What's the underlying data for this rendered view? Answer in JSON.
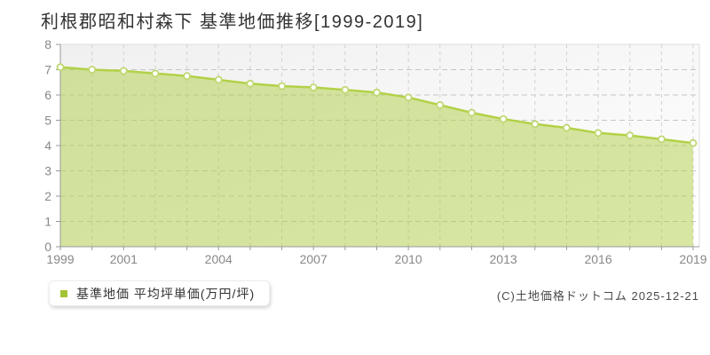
{
  "title": "利根郡昭和村森下 基準地価推移[1999-2019]",
  "legend": {
    "label": "基準地価 平均坪単価(万円/坪)",
    "swatch_color": "#a2c433"
  },
  "copyright": "(C)土地価格ドットコム 2025-12-21",
  "chart_data": {
    "type": "area",
    "title": "利根郡昭和村森下 基準地価推移[1999-2019]",
    "x": [
      1999,
      2000,
      2001,
      2002,
      2003,
      2004,
      2005,
      2006,
      2007,
      2008,
      2009,
      2010,
      2011,
      2012,
      2013,
      2014,
      2015,
      2016,
      2017,
      2018,
      2019
    ],
    "series": [
      {
        "name": "基準地価 平均坪単価(万円/坪)",
        "values": [
          7.1,
          7.0,
          6.95,
          6.85,
          6.75,
          6.6,
          6.45,
          6.35,
          6.3,
          6.2,
          6.1,
          5.9,
          5.6,
          5.3,
          5.05,
          4.85,
          4.7,
          4.5,
          4.4,
          4.25,
          4.1
        ]
      }
    ],
    "xlabel": "",
    "ylabel": "",
    "ylim": [
      0,
      8
    ],
    "yticks": [
      0,
      1,
      2,
      3,
      4,
      5,
      6,
      7,
      8
    ],
    "xtick_labels": [
      "1999",
      "2001",
      "2004",
      "2007",
      "2010",
      "2013",
      "2016",
      "2019"
    ],
    "grid": true,
    "legend_position": "bottom-left",
    "marker": "white-circle",
    "colors": {
      "line": "#b2d147",
      "fill": "rgba(175,208,70,0.5)",
      "marker_stroke": "#c0d871",
      "grid_h": "#c6c6c6",
      "grid_v": "#d0d0d0",
      "axis": "#999999",
      "border": "#dddddd"
    }
  }
}
